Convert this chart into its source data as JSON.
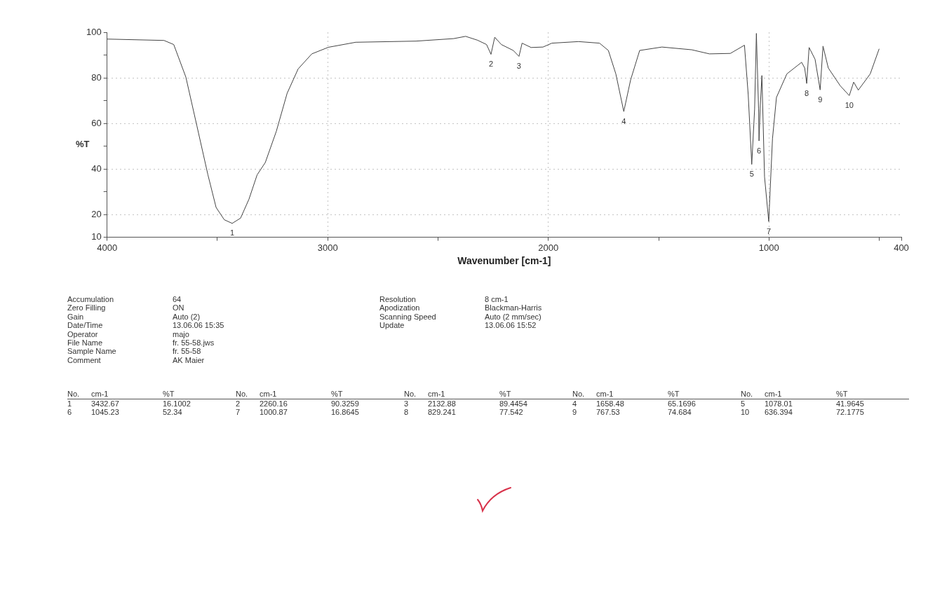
{
  "chart_data": {
    "type": "line",
    "xlabel": "Wavenumber [cm-1]",
    "ylabel": "%T",
    "xlim": [
      4000,
      400
    ],
    "ylim": [
      10,
      100
    ],
    "xticks": [
      4000,
      {
        "value": 3500,
        "label": null
      },
      3000,
      {
        "value": 2500,
        "label": null
      },
      2000,
      {
        "value": 1500,
        "label": null
      },
      1000,
      {
        "value": 500,
        "label": null
      },
      400
    ],
    "yticks": [
      10,
      20,
      {
        "value": 30,
        "label": null
      },
      40,
      {
        "value": 50,
        "label": null
      },
      60,
      {
        "value": 70,
        "label": null
      },
      80,
      {
        "value": 90,
        "label": null
      },
      100
    ],
    "grid": true,
    "marker": "none",
    "line_style": "solid",
    "series": [
      {
        "color": "#444444",
        "x": [
          4000,
          3742,
          3698,
          3643,
          3593,
          3543,
          3506,
          3469,
          3433,
          3395,
          3357,
          3320,
          3283,
          3233,
          3184,
          3134,
          3072,
          2997,
          2873,
          2600,
          2429,
          2375,
          2321,
          2280,
          2260,
          2243,
          2213,
          2159,
          2133,
          2119,
          2078,
          2024,
          1984,
          1863,
          1768,
          1728,
          1694,
          1658,
          1627,
          1586,
          1485,
          1350,
          1270,
          1175,
          1111,
          1094,
          1078,
          1065,
          1057,
          1047,
          1045,
          1040,
          1032,
          1020,
          1001,
          984,
          966,
          919,
          852,
          838,
          829,
          818,
          791,
          768,
          755,
          731,
          677,
          636,
          616,
          595,
          541,
          501
        ],
        "values": [
          97.0,
          96.4,
          94.6,
          80.3,
          58.9,
          37.4,
          23.1,
          17.7,
          16.1,
          18.4,
          26.7,
          37.4,
          42.8,
          56.5,
          73.2,
          83.9,
          90.5,
          93.4,
          95.6,
          96.1,
          97.2,
          98.2,
          96.5,
          94.6,
          90.3,
          97.8,
          94.6,
          92.0,
          89.4,
          95.2,
          93.3,
          93.5,
          95.2,
          95.9,
          95.2,
          92.0,
          81.7,
          65.2,
          79.1,
          92.0,
          93.5,
          92.3,
          90.5,
          90.7,
          94.3,
          72.6,
          42.0,
          66.2,
          99.5,
          66.2,
          52.3,
          66.2,
          81.0,
          36.5,
          16.9,
          53.3,
          71.4,
          81.7,
          86.8,
          84.3,
          77.5,
          93.3,
          88.1,
          74.7,
          93.9,
          84.3,
          76.5,
          72.2,
          78.1,
          74.6,
          81.7,
          92.6
        ]
      }
    ],
    "annotations": [
      {
        "text": "1",
        "x": 3433,
        "y": 16.1
      },
      {
        "text": "2",
        "x": 2260,
        "y": 90.3
      },
      {
        "text": "3",
        "x": 2133,
        "y": 89.4
      },
      {
        "text": "4",
        "x": 1658,
        "y": 65.2
      },
      {
        "text": "5",
        "x": 1078,
        "y": 42.0
      },
      {
        "text": "6",
        "x": 1045,
        "y": 52.3
      },
      {
        "text": "7",
        "x": 1001,
        "y": 16.9
      },
      {
        "text": "8",
        "x": 829,
        "y": 77.5
      },
      {
        "text": "9",
        "x": 768,
        "y": 74.7
      },
      {
        "text": "10",
        "x": 636,
        "y": 72.2
      },
      "Accumulation",
      "64",
      "Zero Filling",
      "ON",
      "Gain",
      "Auto (2)",
      "Date/Time",
      "13.06.06 15:35",
      "Operator",
      "majo",
      "File Name",
      "fr. 55-58.jws",
      "Sample Name",
      "fr. 55-58",
      "Comment",
      "AK Maier",
      "Resolution",
      "8 cm-1",
      "Apodization",
      "Blackman-Harris",
      "Scanning Speed",
      "Auto (2 mm/sec)",
      "Update",
      "13.06.06 15:52",
      "No.",
      "cm-1",
      "%T",
      "No.",
      "cm-1",
      "%T",
      "No.",
      "cm-1",
      "%T",
      "No.",
      "cm-1",
      "%T",
      "No.",
      "cm-1",
      "%T",
      "1",
      "3432.67",
      "16.1002",
      "2",
      "2260.16",
      "90.3259",
      "3",
      "2132.88",
      "89.4454",
      "4",
      "1658.48",
      "65.1696",
      "5",
      "1078.01",
      "41.9645",
      "6",
      "1045.23",
      "52.34",
      "7",
      "1000.87",
      "16.8645",
      "8",
      "829.241",
      "77.542",
      "9",
      "767.53",
      "74.684",
      "10",
      "636.394",
      "72.1775"
    ]
  }
}
